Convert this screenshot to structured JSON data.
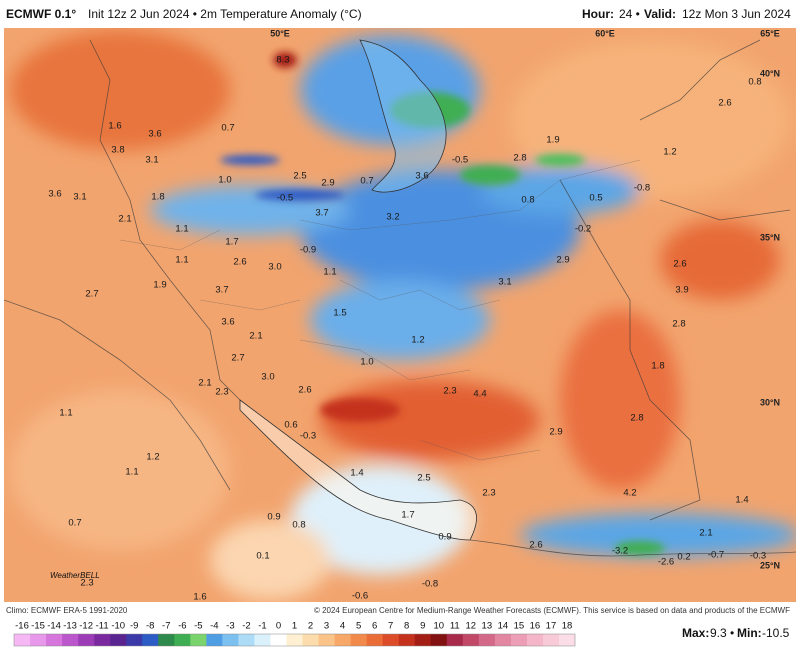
{
  "header": {
    "model": "ECMWF 0.1°",
    "init": "Init 12z 2 Jun 2024 • 2m Temperature Anomaly (°C)",
    "hour_label": "Hour:",
    "hour": "24 •",
    "valid_label": "Valid:",
    "valid": "12z Mon 3 Jun 2024"
  },
  "coordinates": [
    "50°E",
    "60°E",
    "65°E",
    "40°N",
    "35°N",
    "30°N",
    "25°N"
  ],
  "map_labels": [
    "8.3",
    "0.8",
    "2.6",
    "1.2",
    "1.9",
    "0.7",
    "3.6",
    "1.6",
    "3.8",
    "3.1",
    "-0.5",
    "2.8",
    "3.6",
    "0.7",
    "2.9",
    "2.5",
    "1.0",
    "-0.8",
    "3.6",
    "3.1",
    "1.8",
    "-0.5",
    "0.8",
    "0.5",
    "3.7",
    "3.2",
    "2.1",
    "1.1",
    "-0.2",
    "1.7",
    "-0.9",
    "2.6",
    "3.0",
    "1.1",
    "2.9",
    "2.6",
    "1.1",
    "3.1",
    "1.9",
    "3.7",
    "3.9",
    "2.7",
    "1.5",
    "3.6",
    "2.8",
    "2.1",
    "1.2",
    "2.7",
    "1.0",
    "1.8",
    "3.0",
    "2.3",
    "4.4",
    "2.6",
    "2.1",
    "2.3",
    "1.1",
    "0.6",
    "-0.3",
    "2.9",
    "2.8",
    "1.2",
    "1.4",
    "1.1",
    "2.5",
    "4.2",
    "1.4",
    "0.9",
    "0.8",
    "0.7",
    "2.3",
    "1.7",
    "0.9",
    "2.6",
    "-3.2",
    "-2.6",
    "0.2",
    "-0.7",
    "-0.3",
    "2.1",
    "0.1",
    "2.3",
    "1.6",
    "-0.6",
    "-0.8"
  ],
  "logo": "WeatherBELL",
  "footer": {
    "left": "Climo: ECMWF ERA-5 1991-2020",
    "right": "© 2024 European Centre for Medium-Range Weather Forecasts (ECMWF). This service is based on data and products of the ECMWF"
  },
  "colorbar": {
    "ticks": [
      -16,
      -15,
      -14,
      -13,
      -12,
      -11,
      -10,
      -9,
      -8,
      -7,
      -6,
      -5,
      -4,
      -3,
      -2,
      -1,
      0,
      1,
      2,
      3,
      4,
      5,
      6,
      7,
      8,
      9,
      10,
      11,
      12,
      13,
      14,
      15,
      16,
      17,
      18
    ],
    "colors": [
      "#f6b8f4",
      "#e898ea",
      "#d676dc",
      "#bc56cc",
      "#9c3cb6",
      "#7a2a9e",
      "#5a2490",
      "#3c3aa8",
      "#2d5cc4",
      "#2e8a4a",
      "#3fae52",
      "#7bd36e",
      "#4f9ee4",
      "#7cc0f0",
      "#acdcf6",
      "#daf0fb",
      "#ffffff",
      "#fff0d2",
      "#fcdcac",
      "#fac388",
      "#f7a868",
      "#f28a4c",
      "#ea6c36",
      "#dc4c28",
      "#c4321e",
      "#a41e16",
      "#821212",
      "#a82a4a",
      "#c24868",
      "#d46888",
      "#e286a2",
      "#ec9eb6",
      "#f4b6c8",
      "#f8cad8",
      "#fbdde8"
    ]
  },
  "stats": {
    "max_label": "Max:",
    "max": "9.3 •",
    "min_label": "Min:",
    "min": "-10.5"
  }
}
